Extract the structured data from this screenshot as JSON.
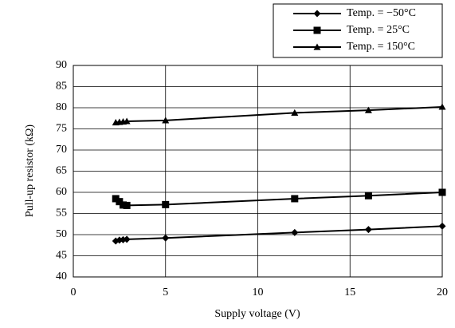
{
  "chart_data": {
    "type": "line",
    "x_label": "Supply voltage  (V)",
    "y_label": "Pull-up resistor  (kΩ)",
    "xlim": [
      0,
      20
    ],
    "xticks": [
      0,
      5,
      10,
      15,
      20
    ],
    "ylim": [
      40,
      90
    ],
    "yticks": [
      40,
      45,
      50,
      55,
      60,
      65,
      70,
      75,
      80,
      85,
      90
    ],
    "grid": true,
    "legend": "top-right",
    "series": [
      {
        "name": "Temp. = −50°C",
        "color": "#000000",
        "marker": "diamond",
        "x": [
          2.3,
          2.5,
          2.7,
          2.9,
          5,
          12,
          16,
          20
        ],
        "values": [
          48.5,
          48.7,
          48.8,
          48.9,
          49.2,
          50.5,
          51.2,
          52.0
        ]
      },
      {
        "name": "Temp. = 25°C",
        "color": "#000000",
        "marker": "square",
        "x": [
          2.3,
          2.5,
          2.7,
          2.9,
          5,
          12,
          16,
          20
        ],
        "values": [
          58.5,
          57.8,
          57.0,
          56.9,
          57.1,
          58.5,
          59.2,
          60.0
        ]
      },
      {
        "name": "Temp. = 150°C",
        "color": "#000000",
        "marker": "triangle",
        "x": [
          2.3,
          2.5,
          2.7,
          2.9,
          5,
          12,
          16,
          20
        ],
        "values": [
          76.5,
          76.6,
          76.7,
          76.8,
          77.0,
          78.8,
          79.4,
          80.2
        ]
      }
    ]
  }
}
